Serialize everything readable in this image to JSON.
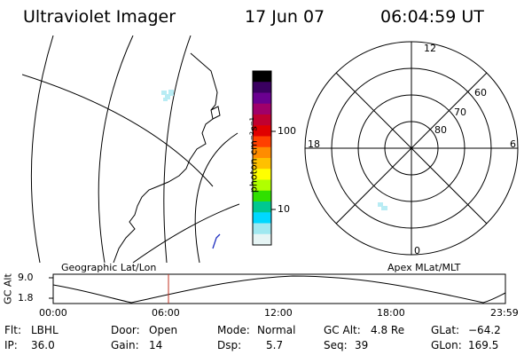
{
  "header": {
    "instrument": "Ultraviolet Imager",
    "date": "17 Jun 07",
    "time": "06:04:59 UT"
  },
  "colorbar": {
    "unit_label": "photon cm⁻²s⁻¹",
    "ticks": [
      "100",
      "10"
    ],
    "colors": [
      "#000000",
      "#3a0060",
      "#6a0090",
      "#a0006a",
      "#c00030",
      "#e00000",
      "#ff4000",
      "#ff8c00",
      "#ffc000",
      "#ffff00",
      "#b0ff00",
      "#30e000",
      "#00c890",
      "#00d8ff",
      "#a0e8f0",
      "#e6f5f5"
    ]
  },
  "geo_panel": {
    "caption": "Geographic Lat/Lon"
  },
  "polar_panel": {
    "caption": "Apex MLat/MLT",
    "mlt_labels": {
      "top": "12",
      "bottom": "0",
      "left": "18",
      "right": "6"
    },
    "lat_labels": [
      "60",
      "70",
      "80"
    ]
  },
  "orbit_plot": {
    "ylabel": "GC Alt",
    "y_ticks": [
      "9.0",
      "1.8"
    ],
    "x_ticks": [
      "00:00",
      "06:00",
      "12:00",
      "18:00",
      "23:59"
    ],
    "marker_time": "06:04:59"
  },
  "info": {
    "filter_label": "Flt:",
    "filter_value": "LBHL",
    "ip_label": "IP:",
    "ip_value": "36.0",
    "door_label": "Door:",
    "door_value": "Open",
    "gain_label": "Gain:",
    "gain_value": "14",
    "mode_label": "Mode:",
    "mode_value": "Normal",
    "dsp_label": "Dsp:",
    "dsp_value": "5.7",
    "gcalt_label": "GC Alt:",
    "gcalt_value": "4.8 Re",
    "seq_label": "Seq:",
    "seq_value": "39",
    "glat_label": "GLat:",
    "glat_value": "−64.2",
    "glon_label": "GLon:",
    "glon_value": "169.5"
  }
}
